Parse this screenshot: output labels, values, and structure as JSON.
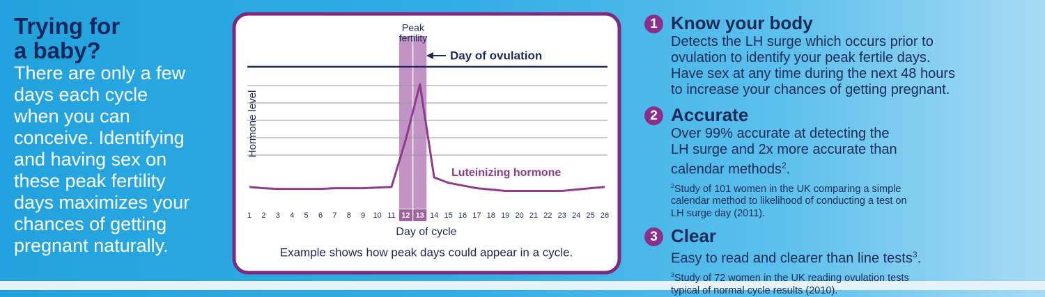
{
  "intro": {
    "title_lines": [
      "Trying for",
      "a baby?"
    ],
    "body_lines": [
      "There are only a few",
      "days each cycle",
      "when you can",
      "conceive. Identifying",
      "and having sex on",
      "these peak fertility",
      "days maximizes your",
      "chances of getting",
      "pregnant naturally."
    ]
  },
  "chart_data": {
    "type": "line",
    "categories": [
      "1",
      "2",
      "3",
      "4",
      "5",
      "6",
      "7",
      "8",
      "9",
      "10",
      "11",
      "12",
      "13",
      "14",
      "15",
      "16",
      "17",
      "18",
      "19",
      "20",
      "21",
      "22",
      "23",
      "24",
      "25",
      "26"
    ],
    "series": [
      {
        "name": "Luteinizing hormone",
        "color": "#8e3a8e",
        "values": [
          1.1,
          1.0,
          0.95,
          0.95,
          0.95,
          0.95,
          1.0,
          1.0,
          1.0,
          1.05,
          1.1,
          4.6,
          8.7,
          1.8,
          1.4,
          1.2,
          1.0,
          0.9,
          0.8,
          0.8,
          0.8,
          0.8,
          0.8,
          0.9,
          1.0,
          1.1
        ]
      }
    ],
    "ylim": [
      0,
      10
    ],
    "x_label": "Day of cycle",
    "y_label": "Hormone level",
    "peak_days": [
      12,
      13
    ],
    "peak_label_lines": [
      "Peak",
      "fertility"
    ],
    "ovulation_label": "Day of ovulation",
    "caption": "Example shows how peak days could appear in a cycle."
  },
  "items": [
    {
      "number": "1",
      "heading": "Know your body",
      "body_lines": [
        "Detects the LH surge which occurs prior to",
        "ovulation to identify your peak fertile days.",
        "Have sex at any time during the next 48 hours",
        "to increase your chances of getting pregnant."
      ]
    },
    {
      "number": "2",
      "heading": "Accurate",
      "body_lines": [
        "Over 99% accurate at detecting the",
        "LH surge and 2x more accurate than",
        "calendar methods"
      ],
      "body_note": "2",
      "body_end": ".",
      "footnote_mark": "2",
      "footnote_lines": [
        "Study of 101 women in the UK comparing a simple",
        "calendar method to likelihood of conducting a test on",
        "LH surge day (2011)."
      ]
    },
    {
      "number": "3",
      "heading": "Clear",
      "body_lines": [
        "Easy to read and clearer than line tests"
      ],
      "body_note": "3",
      "body_end": ".",
      "footnote_mark": "3",
      "footnote_lines": [
        "Study of 72 women in the UK reading ovulation tests",
        "typical of normal cycle results (2010)."
      ]
    }
  ]
}
